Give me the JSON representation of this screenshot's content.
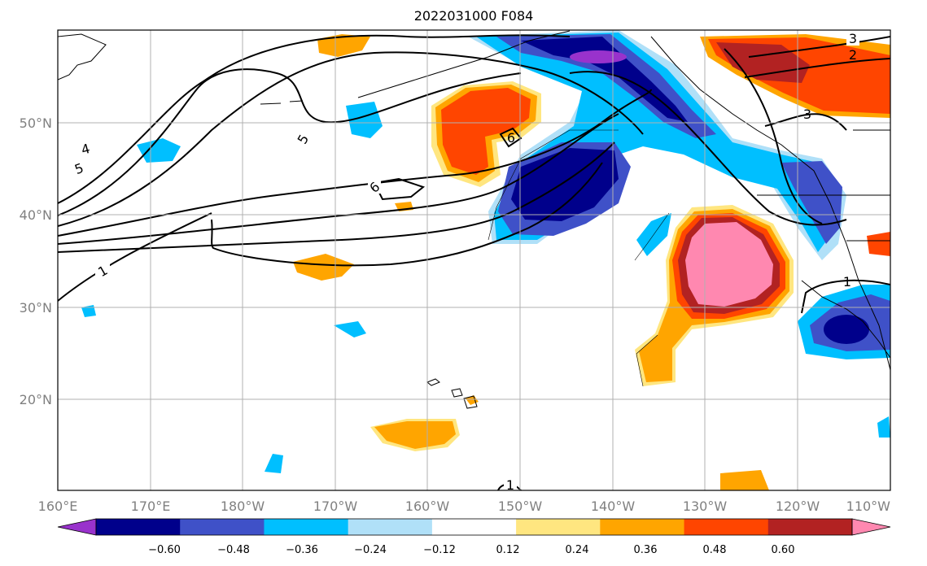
{
  "title": "2022031000 F084",
  "lat_labels": [
    "50°N",
    "40°N",
    "30°N",
    "20°N"
  ],
  "lon_labels": [
    "160°E",
    "170°E",
    "180°W",
    "170°W",
    "160°W",
    "150°W",
    "140°W",
    "130°W",
    "120°W",
    "110°W"
  ],
  "colorbar": {
    "ticks": [
      "−0.60",
      "−0.48",
      "−0.36",
      "−0.24",
      "−0.12",
      "0.12",
      "0.24",
      "0.36",
      "0.48",
      "0.60"
    ],
    "colors": [
      "#9932cc",
      "#00008b",
      "#3f51c8",
      "#00bfff",
      "#b0e0f8",
      "#ffffff",
      "#ffe680",
      "#ffa500",
      "#ff4500",
      "#b22222",
      "#ff88b0"
    ]
  },
  "contour_labels": [
    "1",
    "4",
    "5",
    "5",
    "6",
    "6",
    "1",
    "1",
    "3",
    "2",
    "3"
  ]
}
